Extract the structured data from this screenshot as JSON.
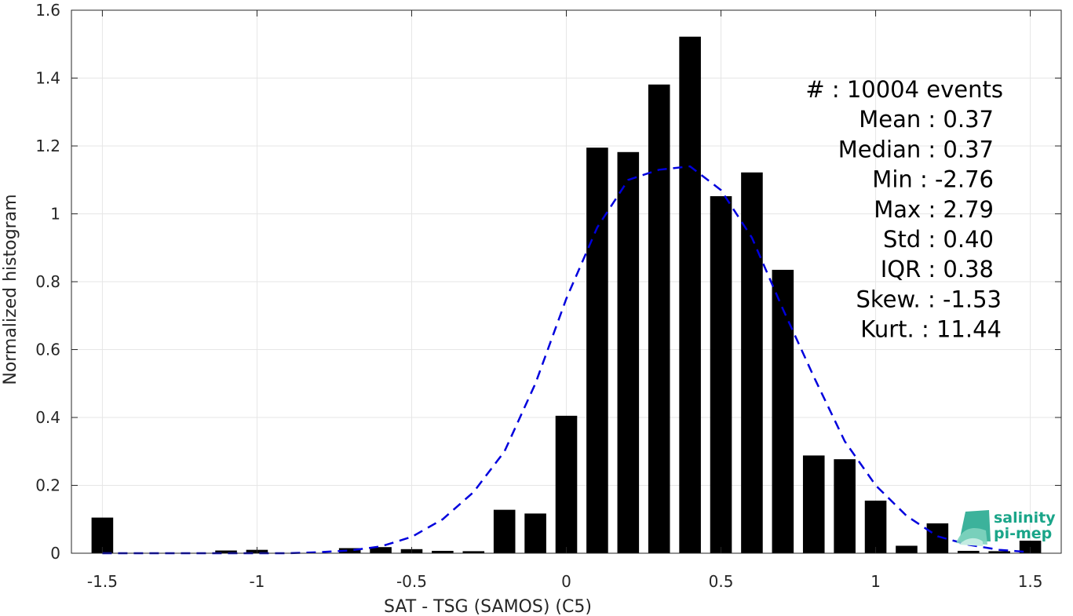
{
  "chart_data": {
    "type": "bar",
    "xlabel": "SAT - TSG (SAMOS) (C5)",
    "ylabel": "Normalized histogram",
    "xlim": [
      -1.6,
      1.6
    ],
    "ylim": [
      0,
      1.6
    ],
    "xticks": [
      -1.5,
      -1,
      -0.5,
      0,
      0.5,
      1,
      1.5
    ],
    "xtick_labels": [
      "-1.5",
      "-1",
      "-0.5",
      "0",
      "0.5",
      "1",
      "1.5"
    ],
    "yticks": [
      0,
      0.2,
      0.4,
      0.6,
      0.8,
      1,
      1.2,
      1.4,
      1.6
    ],
    "ytick_labels": [
      "0",
      "0.2",
      "0.4",
      "0.6",
      "0.8",
      "1",
      "1.2",
      "1.4",
      "1.6"
    ],
    "grid": true,
    "bar_color": "#000000",
    "bar_width": 0.07,
    "x": [
      -1.5,
      -1.4,
      -1.3,
      -1.2,
      -1.1,
      -1.0,
      -0.9,
      -0.8,
      -0.7,
      -0.6,
      -0.5,
      -0.4,
      -0.3,
      -0.2,
      -0.1,
      0.0,
      0.1,
      0.2,
      0.3,
      0.4,
      0.5,
      0.6,
      0.7,
      0.8,
      0.9,
      1.0,
      1.1,
      1.2,
      1.3,
      1.4,
      1.5
    ],
    "values": [
      0.105,
      0.0,
      0.0,
      0.0,
      0.008,
      0.01,
      0.0,
      0.0,
      0.015,
      0.018,
      0.012,
      0.007,
      0.006,
      0.128,
      0.117,
      0.405,
      1.195,
      1.182,
      1.381,
      1.522,
      1.052,
      1.122,
      0.835,
      0.288,
      0.277,
      0.155,
      0.022,
      0.088,
      0.007,
      0.006,
      0.037
    ],
    "fit_curve": {
      "style": "dashed",
      "color": "#0000dd",
      "x": [
        -1.5,
        -1.4,
        -1.3,
        -1.2,
        -1.1,
        -1.0,
        -0.9,
        -0.8,
        -0.7,
        -0.6,
        -0.5,
        -0.4,
        -0.3,
        -0.2,
        -0.1,
        0.0,
        0.1,
        0.2,
        0.3,
        0.4,
        0.5,
        0.6,
        0.7,
        0.8,
        0.9,
        1.0,
        1.1,
        1.2,
        1.3,
        1.4,
        1.5
      ],
      "y": [
        0.0,
        0.0,
        0.0,
        0.0,
        0.0,
        0.0,
        0.0,
        0.003,
        0.008,
        0.02,
        0.048,
        0.1,
        0.18,
        0.3,
        0.5,
        0.75,
        0.96,
        1.1,
        1.13,
        1.14,
        1.07,
        0.93,
        0.72,
        0.52,
        0.33,
        0.2,
        0.11,
        0.05,
        0.025,
        0.01,
        0.003
      ]
    }
  },
  "stats": [
    "#  : 10004 events",
    "Mean : 0.37",
    "Median : 0.37",
    "Min : -2.76",
    "Max : 2.79",
    "Std : 0.40",
    "IQR : 0.38",
    "Skew. : -1.53",
    "Kurt. : 11.44"
  ],
  "logo": {
    "line1": "salinity",
    "line2": "pi-mep",
    "color": "#1aa589"
  }
}
